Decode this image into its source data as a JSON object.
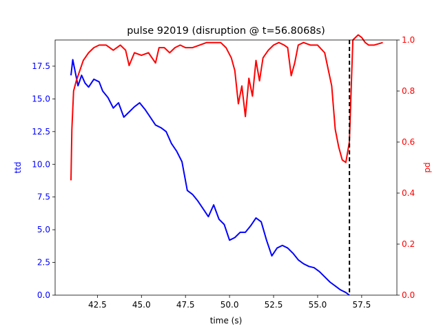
{
  "chart_data": {
    "type": "line",
    "title": "pulse 92019 (disruption @ t=56.8068s)",
    "xlabel": "time (s)",
    "ylabel_left": "ttd",
    "ylabel_right": "pd",
    "xlim": [
      40.1,
      59.5
    ],
    "ylim_left": [
      0,
      19.5
    ],
    "ylim_right": [
      0,
      1.0
    ],
    "x_ticks": [
      "42.5",
      "45.0",
      "47.5",
      "50.0",
      "52.5",
      "55.0",
      "57.5"
    ],
    "x_tick_values": [
      42.5,
      45.0,
      47.5,
      50.0,
      52.5,
      55.0,
      57.5
    ],
    "y_ticks_left": [
      "0.0",
      "2.5",
      "5.0",
      "7.5",
      "10.0",
      "12.5",
      "15.0",
      "17.5"
    ],
    "y_tick_values_left": [
      0,
      2.5,
      5.0,
      7.5,
      10.0,
      12.5,
      15.0,
      17.5
    ],
    "y_ticks_right": [
      "0.0",
      "0.2",
      "0.4",
      "0.6",
      "0.8",
      "1.0"
    ],
    "y_tick_values_right": [
      0,
      0.2,
      0.4,
      0.6,
      0.8,
      1.0
    ],
    "disruption_time": 56.8068,
    "colors": {
      "ttd": "#0000ff",
      "pd": "#ff0000",
      "marker": "#000000"
    },
    "series": [
      {
        "name": "ttd",
        "axis": "left",
        "x": [
          41.0,
          41.1,
          41.25,
          41.4,
          41.6,
          41.8,
          42.0,
          42.3,
          42.6,
          42.8,
          43.1,
          43.4,
          43.7,
          44.0,
          44.3,
          44.6,
          44.9,
          45.2,
          45.5,
          45.8,
          46.1,
          46.4,
          46.7,
          47.0,
          47.3,
          47.6,
          47.9,
          48.2,
          48.5,
          48.8,
          49.1,
          49.4,
          49.7,
          50.0,
          50.3,
          50.6,
          50.9,
          51.2,
          51.5,
          51.8,
          52.1,
          52.4,
          52.7,
          53.0,
          53.3,
          53.6,
          53.9,
          54.2,
          54.5,
          54.8,
          55.1,
          55.4,
          55.7,
          56.0,
          56.3,
          56.6,
          56.8
        ],
        "y": [
          16.8,
          18.0,
          17.0,
          16.0,
          16.8,
          16.2,
          15.9,
          16.5,
          16.3,
          15.6,
          15.1,
          14.3,
          14.7,
          13.6,
          14.0,
          14.4,
          14.7,
          14.2,
          13.6,
          13.0,
          12.8,
          12.5,
          11.6,
          11.0,
          10.2,
          8.0,
          7.7,
          7.2,
          6.6,
          6.0,
          6.9,
          5.8,
          5.4,
          4.2,
          4.4,
          4.8,
          4.8,
          5.3,
          5.9,
          5.6,
          4.2,
          3.0,
          3.6,
          3.8,
          3.6,
          3.2,
          2.7,
          2.4,
          2.2,
          2.1,
          1.8,
          1.4,
          1.0,
          0.7,
          0.4,
          0.2,
          0.0
        ]
      },
      {
        "name": "pd",
        "axis": "right",
        "x": [
          41.0,
          41.05,
          41.15,
          41.3,
          41.5,
          41.7,
          42.0,
          42.3,
          42.6,
          43.0,
          43.4,
          43.8,
          44.1,
          44.3,
          44.6,
          45.0,
          45.4,
          45.8,
          46.0,
          46.3,
          46.6,
          46.9,
          47.2,
          47.5,
          47.9,
          48.3,
          48.7,
          49.1,
          49.5,
          49.8,
          50.1,
          50.3,
          50.5,
          50.7,
          50.9,
          51.1,
          51.3,
          51.5,
          51.7,
          51.9,
          52.2,
          52.5,
          52.8,
          53.1,
          53.3,
          53.5,
          53.7,
          53.9,
          54.2,
          54.6,
          55.0,
          55.4,
          55.8,
          56.0,
          56.2,
          56.4,
          56.6,
          56.8,
          57.0,
          57.3,
          57.5,
          57.7,
          57.9,
          58.2,
          58.7
        ],
        "y": [
          0.45,
          0.65,
          0.8,
          0.84,
          0.88,
          0.92,
          0.95,
          0.97,
          0.98,
          0.98,
          0.96,
          0.98,
          0.96,
          0.9,
          0.95,
          0.94,
          0.95,
          0.91,
          0.97,
          0.97,
          0.95,
          0.97,
          0.98,
          0.97,
          0.97,
          0.98,
          0.99,
          0.99,
          0.99,
          0.97,
          0.93,
          0.88,
          0.75,
          0.82,
          0.7,
          0.85,
          0.78,
          0.92,
          0.84,
          0.93,
          0.96,
          0.98,
          0.99,
          0.98,
          0.97,
          0.86,
          0.91,
          0.98,
          0.99,
          0.98,
          0.98,
          0.95,
          0.82,
          0.65,
          0.58,
          0.53,
          0.52,
          0.6,
          1.0,
          1.02,
          1.01,
          0.99,
          0.98,
          0.98,
          0.99
        ]
      }
    ]
  }
}
